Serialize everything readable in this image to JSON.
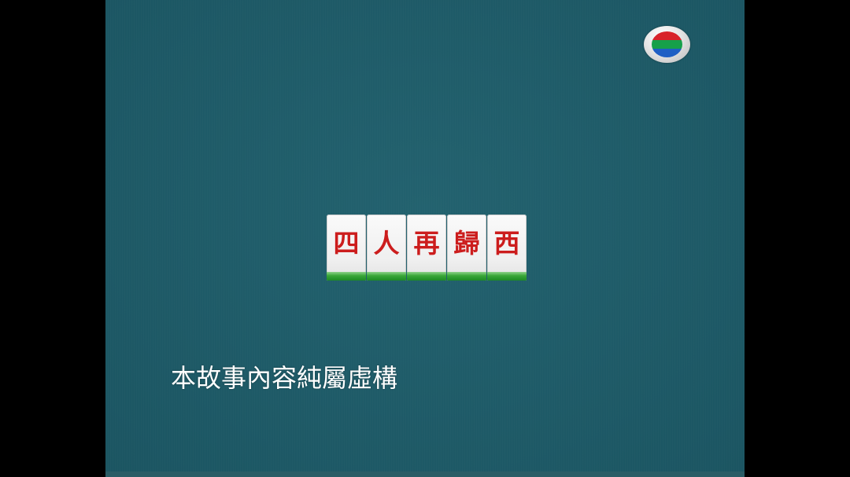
{
  "broadcaster_logo": {
    "icon": "tvb-logo-icon",
    "colors": [
      "#d8232a",
      "#16a04a",
      "#1f5fc4"
    ]
  },
  "title_tiles": {
    "characters": [
      "四",
      "人",
      "再",
      "歸",
      "西"
    ],
    "text_color": "#cc1d1d",
    "base_color": "#2f9e35"
  },
  "disclaimer": {
    "text": "本故事內容純屬虛構"
  },
  "background_color": "#1f5d6b"
}
